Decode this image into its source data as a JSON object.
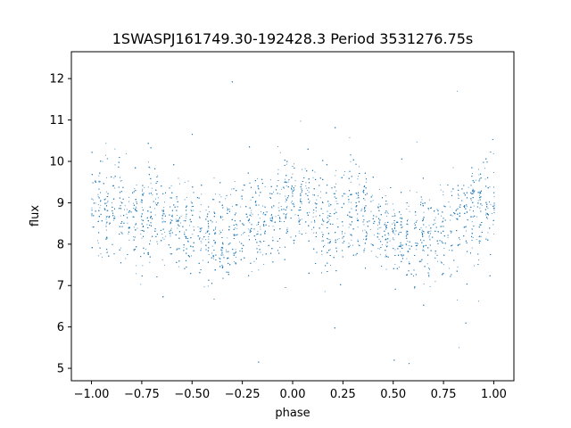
{
  "chart_data": {
    "type": "scatter",
    "title": "1SWASPJ161749.30-192428.3 Period 3531276.75s",
    "xlabel": "phase",
    "ylabel": "flux",
    "xlim": [
      -1.1,
      1.1
    ],
    "ylim": [
      4.7,
      12.65
    ],
    "xticks": [
      -1.0,
      -0.75,
      -0.5,
      -0.25,
      0.0,
      0.25,
      0.5,
      0.75,
      1.0
    ],
    "xtick_labels": [
      "−1.00",
      "−0.75",
      "−0.50",
      "−0.25",
      "0.00",
      "0.25",
      "0.50",
      "0.75",
      "1.00"
    ],
    "yticks": [
      5,
      6,
      7,
      8,
      9,
      10,
      11,
      12
    ],
    "ytick_labels": [
      "5",
      "6",
      "7",
      "8",
      "9",
      "10",
      "11",
      "12"
    ],
    "grid": false,
    "legend": "none",
    "point_color": "#1f77b4",
    "series": [
      {
        "phase_range": [
          -1.0,
          1.0
        ],
        "profile": [
          {
            "x": -1.0,
            "y_center": 9.1,
            "y_spread": [
              7.6,
              10.8
            ]
          },
          {
            "x": -0.9,
            "y_center": 8.9,
            "y_spread": [
              7.6,
              10.5
            ]
          },
          {
            "x": -0.8,
            "y_center": 8.6,
            "y_spread": [
              7.4,
              10.3
            ]
          },
          {
            "x": -0.7,
            "y_center": 8.9,
            "y_spread": [
              7.5,
              10.4
            ]
          },
          {
            "x": -0.6,
            "y_center": 8.6,
            "y_spread": [
              7.4,
              10.0
            ]
          },
          {
            "x": -0.5,
            "y_center": 8.3,
            "y_spread": [
              7.3,
              9.6
            ]
          },
          {
            "x": -0.4,
            "y_center": 8.1,
            "y_spread": [
              7.0,
              9.5
            ]
          },
          {
            "x": -0.3,
            "y_center": 8.3,
            "y_spread": [
              7.2,
              9.8
            ]
          },
          {
            "x": -0.2,
            "y_center": 8.5,
            "y_spread": [
              7.4,
              9.8
            ]
          },
          {
            "x": -0.1,
            "y_center": 8.8,
            "y_spread": [
              7.6,
              10.2
            ]
          },
          {
            "x": 0.0,
            "y_center": 9.1,
            "y_spread": [
              7.8,
              10.6
            ]
          },
          {
            "x": 0.1,
            "y_center": 8.9,
            "y_spread": [
              7.6,
              10.4
            ]
          },
          {
            "x": 0.2,
            "y_center": 8.6,
            "y_spread": [
              7.4,
              10.3
            ]
          },
          {
            "x": 0.3,
            "y_center": 8.9,
            "y_spread": [
              7.5,
              10.4
            ]
          },
          {
            "x": 0.4,
            "y_center": 8.6,
            "y_spread": [
              7.4,
              10.0
            ]
          },
          {
            "x": 0.5,
            "y_center": 8.3,
            "y_spread": [
              7.3,
              9.6
            ]
          },
          {
            "x": 0.6,
            "y_center": 8.1,
            "y_spread": [
              7.0,
              9.5
            ]
          },
          {
            "x": 0.7,
            "y_center": 8.3,
            "y_spread": [
              7.2,
              9.8
            ]
          },
          {
            "x": 0.8,
            "y_center": 8.5,
            "y_spread": [
              7.4,
              9.8
            ]
          },
          {
            "x": 0.9,
            "y_center": 8.8,
            "y_spread": [
              7.6,
              10.2
            ]
          },
          {
            "x": 1.0,
            "y_center": 9.1,
            "y_spread": [
              7.8,
              10.6
            ]
          }
        ],
        "outlier_range": [
          5.0,
          12.2
        ]
      }
    ]
  }
}
